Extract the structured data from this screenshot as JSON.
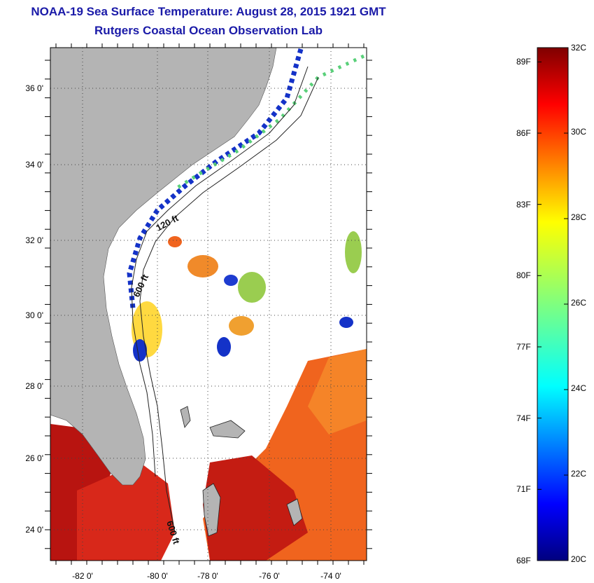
{
  "title": {
    "line1": "NOAA-19 Sea Surface Temperature:  August 28, 2015 1921 GMT",
    "line2": "Rutgers Coastal Ocean Observation Lab"
  },
  "map": {
    "lat_ticks": [
      "36 0'",
      "34 0'",
      "32 0'",
      "30 0'",
      "28 0'",
      "26 0'",
      "24 0'"
    ],
    "lon_ticks": [
      "-82 0'",
      "-80 0'",
      "-78 0'",
      "-76 0'",
      "-74 0'"
    ],
    "isobaths": [
      "120 ft",
      "600 ft",
      "600 ft"
    ],
    "colors": {
      "land": "#b4b4b4",
      "ocean_no_data": "#ffffff",
      "hot": "#c81e14",
      "warm": "#f0641e",
      "mid": "#ffd21e",
      "cool": "#1432c8"
    }
  },
  "colorbar": {
    "fahrenheit": [
      "89F",
      "86F",
      "83F",
      "80F",
      "77F",
      "74F",
      "71F",
      "68F"
    ],
    "celsius": [
      "32C",
      "30C",
      "28C",
      "26C",
      "24C",
      "22C",
      "20C"
    ],
    "range_c": [
      20,
      32
    ],
    "colormap": "jet"
  }
}
